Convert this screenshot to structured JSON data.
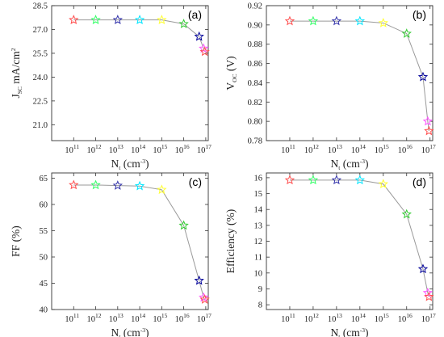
{
  "colors": [
    "#ff4d4d",
    "#33ff66",
    "#3333aa",
    "#00e5ff",
    "#ffff33",
    "#33cc33",
    "#000099",
    "#ff55ff"
  ],
  "chart_data": [
    {
      "type": "line",
      "panel_label": "(a)",
      "ylabel": {
        "main": "J",
        "sub": "SC",
        "rest": " mA/cm",
        "sup": "2"
      },
      "xlabel": {
        "main": "N",
        "sub": "t",
        "rest": " (cm",
        "sup": "-3",
        "end": ")"
      },
      "x_scale": "log",
      "xlim": [
        10000000000.0,
        1.3e+17
      ],
      "ylim": [
        20,
        28.5
      ],
      "x_ticks": [
        {
          "v": 100000000000.0,
          "base": "10",
          "exp": "11"
        },
        {
          "v": 1000000000000.0,
          "base": "10",
          "exp": "12"
        },
        {
          "v": 10000000000000.0,
          "base": "10",
          "exp": "13"
        },
        {
          "v": 100000000000000.0,
          "base": "10",
          "exp": "14"
        },
        {
          "v": 1000000000000000.0,
          "base": "10",
          "exp": "15"
        },
        {
          "v": 1e+16,
          "base": "10",
          "exp": "16"
        },
        {
          "v": 1e+17,
          "base": "10",
          "exp": "17"
        }
      ],
      "y_ticks": [
        "21.0",
        "22.5",
        "24.0",
        "25.5",
        "27.0",
        "28.5"
      ],
      "x": [
        100000000000.0,
        1000000000000.0,
        10000000000000.0,
        100000000000000.0,
        1000000000000000.0,
        1e+16,
        5e+16,
        8e+16,
        9e+16
      ],
      "y": [
        27.6,
        27.6,
        27.6,
        27.6,
        27.6,
        27.35,
        26.55,
        25.8,
        25.6
      ]
    },
    {
      "type": "line",
      "panel_label": "(b)",
      "ylabel": {
        "main": "V",
        "sub": "OC",
        "rest": " (V)",
        "sup": "",
        "end": ""
      },
      "xlabel": {
        "main": "N",
        "sub": "t",
        "rest": " (cm",
        "sup": "-3",
        "end": ")"
      },
      "x_scale": "log",
      "xlim": [
        10000000000.0,
        1.3e+17
      ],
      "ylim": [
        0.78,
        0.92
      ],
      "x_ticks": [
        {
          "v": 100000000000.0,
          "base": "10",
          "exp": "11"
        },
        {
          "v": 1000000000000.0,
          "base": "10",
          "exp": "12"
        },
        {
          "v": 10000000000000.0,
          "base": "10",
          "exp": "13"
        },
        {
          "v": 100000000000000.0,
          "base": "10",
          "exp": "14"
        },
        {
          "v": 1000000000000000.0,
          "base": "10",
          "exp": "15"
        },
        {
          "v": 1e+16,
          "base": "10",
          "exp": "16"
        },
        {
          "v": 1e+17,
          "base": "10",
          "exp": "17"
        }
      ],
      "y_ticks": [
        "0.78",
        "0.80",
        "0.82",
        "0.84",
        "0.86",
        "0.88",
        "0.90",
        "0.92"
      ],
      "x": [
        100000000000.0,
        1000000000000.0,
        10000000000000.0,
        100000000000000.0,
        1000000000000000.0,
        1e+16,
        5e+16,
        8e+16,
        9e+16
      ],
      "y": [
        0.904,
        0.904,
        0.904,
        0.904,
        0.902,
        0.891,
        0.846,
        0.8,
        0.79
      ]
    },
    {
      "type": "line",
      "panel_label": "(c)",
      "ylabel": {
        "main": "FF (%)",
        "sub": "",
        "rest": "",
        "sup": "",
        "end": ""
      },
      "xlabel": {
        "main": "N",
        "sub": "t",
        "rest": " (cm",
        "sup": "-3",
        "end": ")"
      },
      "x_scale": "log",
      "xlim": [
        10000000000.0,
        1.3e+17
      ],
      "ylim": [
        40,
        66
      ],
      "x_ticks": [
        {
          "v": 100000000000.0,
          "base": "10",
          "exp": "11"
        },
        {
          "v": 1000000000000.0,
          "base": "10",
          "exp": "12"
        },
        {
          "v": 10000000000000.0,
          "base": "10",
          "exp": "13"
        },
        {
          "v": 100000000000000.0,
          "base": "10",
          "exp": "14"
        },
        {
          "v": 1000000000000000.0,
          "base": "10",
          "exp": "15"
        },
        {
          "v": 1e+16,
          "base": "10",
          "exp": "16"
        },
        {
          "v": 1e+17,
          "base": "10",
          "exp": "17"
        }
      ],
      "y_ticks": [
        "40",
        "45",
        "50",
        "55",
        "60",
        "65"
      ],
      "x": [
        100000000000.0,
        1000000000000.0,
        10000000000000.0,
        100000000000000.0,
        1000000000000000.0,
        1e+16,
        5e+16,
        8e+16,
        9e+16
      ],
      "y": [
        63.7,
        63.7,
        63.6,
        63.5,
        62.8,
        56.0,
        45.5,
        42.3,
        41.9
      ]
    },
    {
      "type": "line",
      "panel_label": "(d)",
      "ylabel": {
        "main": "Efficiency (%)",
        "sub": "",
        "rest": "",
        "sup": "",
        "end": ""
      },
      "xlabel": {
        "main": "N",
        "sub": "t",
        "rest": " (cm",
        "sup": "-3",
        "end": ")"
      },
      "x_scale": "log",
      "xlim": [
        10000000000.0,
        1.3e+17
      ],
      "ylim": [
        7.7,
        16.3
      ],
      "x_ticks": [
        {
          "v": 100000000000.0,
          "base": "10",
          "exp": "11"
        },
        {
          "v": 1000000000000.0,
          "base": "10",
          "exp": "12"
        },
        {
          "v": 10000000000000.0,
          "base": "10",
          "exp": "13"
        },
        {
          "v": 100000000000000.0,
          "base": "10",
          "exp": "14"
        },
        {
          "v": 1000000000000000.0,
          "base": "10",
          "exp": "15"
        },
        {
          "v": 1e+16,
          "base": "10",
          "exp": "16"
        },
        {
          "v": 1e+17,
          "base": "10",
          "exp": "17"
        }
      ],
      "y_ticks": [
        "8",
        "9",
        "10",
        "11",
        "12",
        "13",
        "14",
        "15",
        "16"
      ],
      "x": [
        100000000000.0,
        1000000000000.0,
        10000000000000.0,
        100000000000000.0,
        1000000000000000.0,
        1e+16,
        5e+16,
        8e+16,
        9e+16
      ],
      "y": [
        15.85,
        15.85,
        15.85,
        15.85,
        15.6,
        13.7,
        10.25,
        8.75,
        8.5
      ]
    }
  ]
}
